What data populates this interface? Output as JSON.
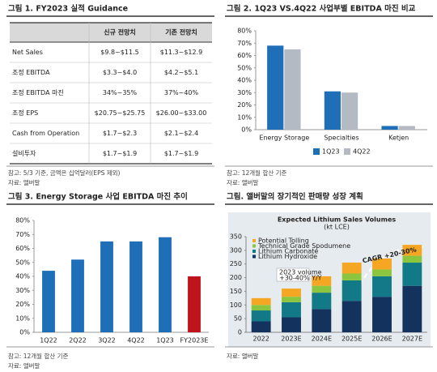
{
  "figures": [
    {
      "title": "그림 1. FY2023 실적 Guidance",
      "table": {
        "header": [
          "신규 전망치",
          "기존 전망치"
        ],
        "rows": [
          [
            "Net Sales",
            "$9.8~$11.5",
            "$11.3~$12.9"
          ],
          [
            "조정 EBITDA",
            "$3.3~$4.0",
            "$4.2~$5.1"
          ],
          [
            "조정 EBITDA 마진",
            "34%~35%",
            "37%~40%"
          ],
          [
            "조정 EPS",
            "$20.75~$25.75",
            "$26.00~$33.00"
          ],
          [
            "Cash from Operation",
            "$1.7~$2.3",
            "$2.1~$2.4"
          ],
          [
            "설비투자",
            "$1.7~$1.9",
            "$1.7~$1.9"
          ]
        ]
      },
      "notes": [
        "참고: 5/3 기준, 금액은 십억달러(EPS 제외)",
        "자료: 앨버말"
      ]
    },
    {
      "title": "그림 2. 1Q23 VS.4Q22 사업부별 EBITDA 마진 비교",
      "chart": {
        "type": "bar",
        "categories": [
          "Energy Storage",
          "Specialties",
          "Ketjen"
        ],
        "series": [
          {
            "name": "1Q23",
            "color": "#1f6fb8",
            "values": [
              68,
              31,
              3
            ]
          },
          {
            "name": "4Q22",
            "color": "#b3bac4",
            "values": [
              65,
              30,
              3
            ]
          }
        ],
        "ylim": [
          0,
          80
        ],
        "yticks": [
          {
            "value": 0,
            "label": "0%"
          },
          {
            "value": 10,
            "label": "10%"
          },
          {
            "value": 20,
            "label": "20%"
          },
          {
            "value": 30,
            "label": "30%"
          },
          {
            "value": 40,
            "label": "40%"
          },
          {
            "value": 50,
            "label": "50%"
          },
          {
            "value": 60,
            "label": "60%"
          },
          {
            "value": 70,
            "label": "70%"
          },
          {
            "value": 80,
            "label": "80%"
          }
        ],
        "legend": "bottom"
      },
      "notes": [
        "참고: 12개월 합산 기준",
        "자료: 앨버말"
      ]
    },
    {
      "title": "그림 3. Energy Storage 사업 EBITDA 마진 추이",
      "chart": {
        "type": "bar",
        "categories": [
          "1Q22",
          "2Q22",
          "3Q22",
          "4Q22",
          "1Q23",
          "FY2023E"
        ],
        "values": [
          44,
          52,
          65,
          65,
          68,
          40
        ],
        "colors": [
          "#1f6fb8",
          "#1f6fb8",
          "#1f6fb8",
          "#1f6fb8",
          "#1f6fb8",
          "#c0141c"
        ],
        "ylim": [
          0,
          80
        ],
        "yticks": [
          {
            "value": 0,
            "label": "0%"
          },
          {
            "value": 10,
            "label": "10%"
          },
          {
            "value": 20,
            "label": "20%"
          },
          {
            "value": 30,
            "label": "30%"
          },
          {
            "value": 40,
            "label": "40%"
          },
          {
            "value": 50,
            "label": "50%"
          },
          {
            "value": 60,
            "label": "60%"
          },
          {
            "value": 70,
            "label": "70%"
          },
          {
            "value": 80,
            "label": "80%"
          }
        ]
      },
      "notes": [
        "참고: 12개월 합산 기준",
        "자료: 앨버말"
      ]
    },
    {
      "title": "그림. 앨버말의 장기적인 판매량 성장 계획",
      "chart": {
        "type": "stacked_bar",
        "title": "Expected Lithium Sales Volumes",
        "subtitle": "(kt LCE)",
        "categories": [
          "2022",
          "2023E",
          "2024E",
          "2025E",
          "2026E",
          "2027E"
        ],
        "series": [
          {
            "name": "Lithium Hydroxide",
            "color": "#13325e",
            "values": [
              40,
              55,
              85,
              115,
              130,
              170
            ]
          },
          {
            "name": "Lithium Carbonate",
            "color": "#127a86",
            "values": [
              40,
              55,
              60,
              75,
              75,
              85
            ]
          },
          {
            "name": "Technical Grade Spodumene",
            "color": "#8cc63f",
            "values": [
              20,
              20,
              25,
              25,
              25,
              25
            ]
          },
          {
            "name": "Potential Tolling",
            "color": "#f5a623",
            "values": [
              25,
              30,
              35,
              40,
              40,
              40
            ]
          }
        ],
        "ylim": [
          0,
          350
        ],
        "yticks": [
          0,
          50,
          100,
          150,
          200,
          250,
          300,
          350
        ],
        "annotations": [
          "2023 volume",
          "+30-40% Y/Y",
          "CAGR +20-30%"
        ]
      },
      "notes": [
        "자료: 앨버말"
      ]
    }
  ]
}
